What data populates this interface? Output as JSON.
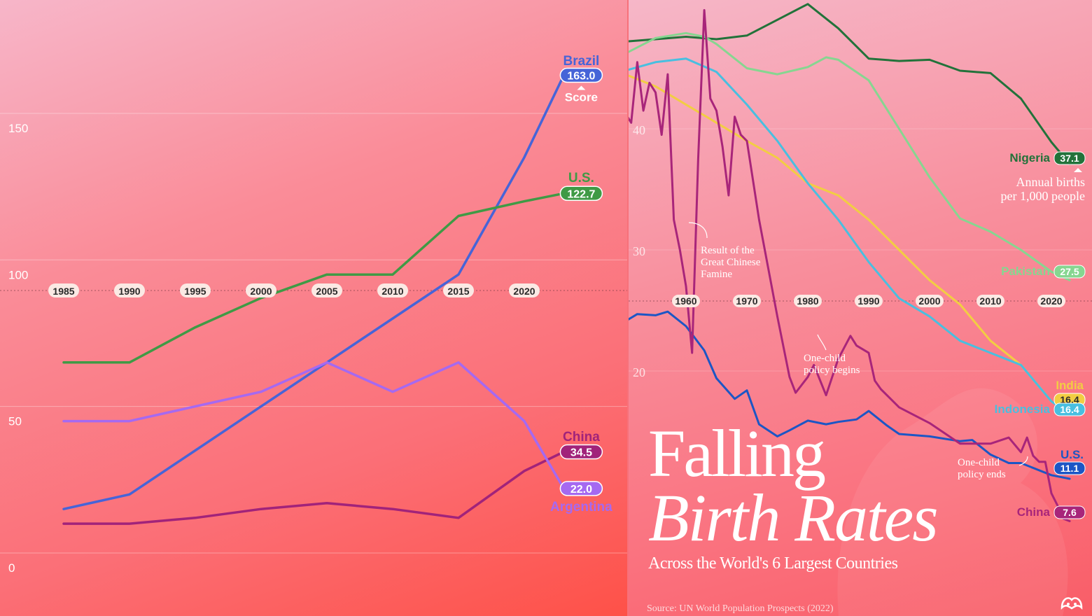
{
  "chart_data": [
    {
      "type": "line",
      "title": "",
      "xlabel": "",
      "ylabel": "",
      "y_ticks": [
        "150",
        "100",
        "50",
        "0"
      ],
      "x_ticks": [
        "1985",
        "1990",
        "1995",
        "2000",
        "2005",
        "2010",
        "2015",
        "2020"
      ],
      "x": [
        1985,
        1990,
        1995,
        2000,
        2005,
        2010,
        2015,
        2020,
        2023
      ],
      "ylim": [
        0,
        190
      ],
      "axis_label": "Score",
      "series": [
        {
          "name": "Brazil",
          "color": "#4664d8",
          "values": [
            15,
            20,
            35,
            50,
            65,
            80,
            95,
            135,
            163
          ],
          "end_value": "163.0"
        },
        {
          "name": "U.S.",
          "color": "#3f9a45",
          "values": [
            65,
            65,
            77,
            87,
            95,
            95,
            115,
            120,
            122.7
          ],
          "end_value": "122.7"
        },
        {
          "name": "China",
          "color": "#a1237a",
          "values": [
            10,
            10,
            12,
            15,
            17,
            15,
            12,
            28,
            34.5
          ],
          "end_value": "34.5"
        },
        {
          "name": "Argentina",
          "color": "#a569f1",
          "values": [
            45,
            45,
            50,
            55,
            65,
            55,
            65,
            45,
            22
          ],
          "end_value": "22.0"
        }
      ]
    },
    {
      "type": "line",
      "title": "Falling Birth Rates",
      "subtitle": "Across the World's 6 Largest Countries",
      "source": "Source: UN World Population Prospects (2022)",
      "y_ticks": [
        "40",
        "30",
        "20"
      ],
      "x_ticks": [
        "1960",
        "1970",
        "1980",
        "1990",
        "2000",
        "2010",
        "2020"
      ],
      "ylim": [
        5,
        50
      ],
      "xlim": [
        1950,
        2023
      ],
      "unit_label": "Annual births per 1,000 people",
      "series": [
        {
          "name": "Nigeria",
          "color": "#22723a",
          "end_value": "37.1",
          "x": [
            1950,
            1955,
            1960,
            1965,
            1970,
            1975,
            1980,
            1985,
            1990,
            1995,
            2000,
            2005,
            2010,
            2015,
            2020,
            2023
          ],
          "values": [
            47.2,
            47.4,
            47.6,
            47.4,
            47.7,
            49,
            50.3,
            48.3,
            45.8,
            45.6,
            45.7,
            44.8,
            44.6,
            42.5,
            38.9,
            37.1
          ]
        },
        {
          "name": "Pakistan",
          "color": "#86d690",
          "end_value": "27.5",
          "x": [
            1950,
            1955,
            1960,
            1963,
            1965,
            1970,
            1975,
            1980,
            1983,
            1985,
            1990,
            1995,
            2000,
            2005,
            2010,
            2015,
            2020,
            2023
          ],
          "values": [
            46.2,
            47.5,
            47.9,
            47.6,
            47,
            45,
            44.5,
            45.1,
            45.9,
            45.7,
            44,
            40,
            36,
            32.6,
            31.5,
            30,
            28.2,
            27.5
          ]
        },
        {
          "name": "India",
          "color": "#f2cd43",
          "end_value": "16.4",
          "x": [
            1950,
            1955,
            1960,
            1965,
            1970,
            1975,
            1980,
            1985,
            1990,
            1995,
            2000,
            2005,
            2010,
            2015,
            2020,
            2023
          ],
          "values": [
            44.5,
            43.5,
            42,
            40.5,
            39,
            37.6,
            35.5,
            34.5,
            32.5,
            30,
            27.5,
            25.5,
            22.5,
            20.5,
            17.5,
            16.4
          ]
        },
        {
          "name": "Indonesia",
          "color": "#48bfe0",
          "end_value": "16.4",
          "x": [
            1950,
            1955,
            1960,
            1965,
            1970,
            1975,
            1980,
            1985,
            1990,
            1995,
            2000,
            2005,
            2010,
            2015,
            2020,
            2023
          ],
          "values": [
            44.8,
            45.5,
            45.8,
            44.7,
            42,
            39,
            35.5,
            32.5,
            29,
            26,
            24.5,
            22.5,
            21.5,
            20.5,
            17.5,
            16.4
          ]
        },
        {
          "name": "U.S.",
          "color": "#1c56c5",
          "end_value": "11.1",
          "x": [
            1950,
            1952,
            1955,
            1957,
            1960,
            1963,
            1965,
            1968,
            1970,
            1972,
            1975,
            1977,
            1980,
            1983,
            1985,
            1988,
            1990,
            1993,
            1995,
            2000,
            2005,
            2007,
            2010,
            2013,
            2015,
            2020,
            2023
          ],
          "values": [
            24.1,
            24.7,
            24.6,
            24.9,
            23.7,
            21.7,
            19.4,
            17.7,
            18.4,
            15.6,
            14.6,
            15.1,
            15.9,
            15.6,
            15.8,
            16,
            16.7,
            15.5,
            14.8,
            14.6,
            14.2,
            14.3,
            13.1,
            12.4,
            12.4,
            11.4,
            11.1
          ]
        },
        {
          "name": "China",
          "color": "#a8257a",
          "end_value": "7.6",
          "x": [
            1950,
            1951,
            1952,
            1953,
            1954,
            1955,
            1956,
            1957,
            1958,
            1959,
            1960,
            1961,
            1962,
            1963,
            1964,
            1965,
            1966,
            1967,
            1968,
            1969,
            1970,
            1972,
            1975,
            1977,
            1978,
            1980,
            1981,
            1983,
            1985,
            1987,
            1988,
            1990,
            1991,
            1992,
            1995,
            2000,
            2005,
            2010,
            2013,
            2015,
            2016,
            2017,
            2018,
            2019,
            2020,
            2021,
            2022,
            2023
          ],
          "values": [
            41.3,
            40.5,
            45.5,
            41.5,
            43.8,
            43,
            39.5,
            44.5,
            32.5,
            30,
            27,
            21.5,
            37.5,
            49.8,
            42.5,
            41.5,
            38.5,
            34.5,
            41,
            39.5,
            39,
            32.5,
            24.5,
            19.5,
            18.2,
            19.5,
            20.5,
            18,
            21,
            22.9,
            22.1,
            21.5,
            19.2,
            18.5,
            17,
            15.7,
            14,
            14,
            14.5,
            13.3,
            14.5,
            13,
            12.5,
            12.5,
            9.9,
            8.9,
            7.8,
            7.6
          ]
        }
      ]
    }
  ],
  "annotations": {
    "famine": [
      "Result of the",
      "Great Chinese",
      "Famine"
    ],
    "one_child_begins": [
      "One-child",
      "policy begins"
    ],
    "one_child_ends": [
      "One-child",
      "policy ends"
    ]
  },
  "colors": {
    "left_bg": "#fa8c98",
    "right_bg": "#f8909e"
  }
}
